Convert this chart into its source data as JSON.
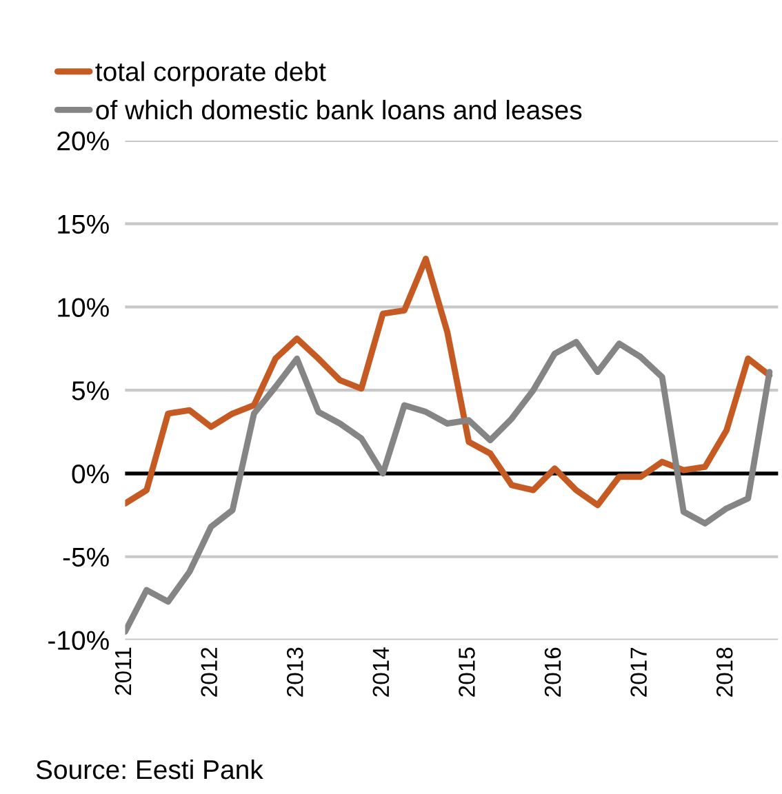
{
  "chart_data": {
    "type": "line",
    "x": [
      2011,
      2011.25,
      2011.5,
      2011.75,
      2012,
      2012.25,
      2012.5,
      2012.75,
      2013,
      2013.25,
      2013.5,
      2013.75,
      2014,
      2014.25,
      2014.5,
      2014.75,
      2015,
      2015.25,
      2015.5,
      2015.75,
      2016,
      2016.25,
      2016.5,
      2016.75,
      2017,
      2017.25,
      2017.5,
      2017.75,
      2018,
      2018.25,
      2018.5
    ],
    "series": [
      {
        "name": "total corporate debt",
        "color": "#c55a22",
        "values": [
          -1.8,
          -1.0,
          3.6,
          3.8,
          2.8,
          3.6,
          4.1,
          6.9,
          8.1,
          6.9,
          5.6,
          5.1,
          9.6,
          9.8,
          12.9,
          8.5,
          1.9,
          1.2,
          -0.7,
          -1.0,
          0.3,
          -1.0,
          -1.9,
          -0.2,
          -0.2,
          0.7,
          0.2,
          0.4,
          2.6,
          6.9,
          5.9
        ]
      },
      {
        "name": "of which domestic bank loans and leases",
        "color": "#858585",
        "values": [
          -9.5,
          -7.0,
          -7.7,
          -5.9,
          -3.2,
          -2.2,
          3.6,
          5.2,
          6.9,
          3.7,
          3.0,
          2.1,
          0.0,
          4.1,
          3.7,
          3.0,
          3.2,
          2.0,
          3.3,
          5.0,
          7.2,
          7.9,
          6.1,
          7.8,
          7.0,
          5.8,
          -2.3,
          -3.0,
          -2.1,
          -1.5,
          6.1
        ]
      }
    ],
    "xlim": [
      2011,
      2018.6
    ],
    "xticks": [
      2011,
      2012,
      2013,
      2014,
      2015,
      2016,
      2017,
      2018
    ],
    "ylim": [
      -10,
      20
    ],
    "yticks": [
      {
        "value": -10,
        "label": "-10%"
      },
      {
        "value": -5,
        "label": "-5%"
      },
      {
        "value": 0,
        "label": "0%"
      },
      {
        "value": 5,
        "label": "5%"
      },
      {
        "value": 10,
        "label": "10%"
      },
      {
        "value": 15,
        "label": "15%"
      },
      {
        "value": 20,
        "label": "20%"
      }
    ],
    "ref_lines": [
      {
        "axis": "y",
        "value": 0,
        "color": "#000000"
      }
    ],
    "grid": "y",
    "legend": "top",
    "marker": "none",
    "line_style": "solid",
    "annotations": [
      "Source: Eesti Pank"
    ]
  }
}
